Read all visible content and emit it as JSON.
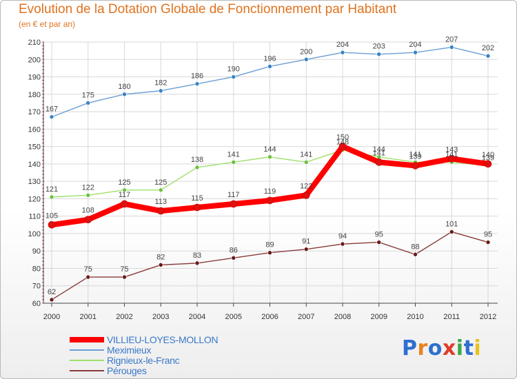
{
  "title": "Evolution de la Dotation Globale de Fonctionnement par Habitant",
  "subtitle": "(en € et par an)",
  "logo": {
    "text": "Proxiti",
    "colors": [
      "#2e6fd0",
      "#e8821e",
      "#2e6fd0",
      "#e03a2a",
      "#3aa84a",
      "#2e6fd0",
      "#e8c31e"
    ]
  },
  "chart_data": {
    "type": "line",
    "title": "Evolution de la Dotation Globale de Fonctionnement par Habitant",
    "subtitle": "(en € et par an)",
    "xlabel": "",
    "ylabel": "",
    "ylim": [
      60,
      210
    ],
    "yticks": [
      60,
      70,
      80,
      90,
      100,
      110,
      120,
      130,
      140,
      150,
      160,
      170,
      180,
      190,
      200,
      210
    ],
    "grid": true,
    "legend_position": "bottom-left",
    "categories": [
      "2000",
      "2001",
      "2002",
      "2003",
      "2004",
      "2005",
      "2006",
      "2007",
      "2008",
      "2009",
      "2010",
      "2011",
      "2012"
    ],
    "series": [
      {
        "name": "VILLIEU-LOYES-MOLLON",
        "color": "#ff0000",
        "marker": "#e01010",
        "width": 8,
        "values": [
          105,
          108,
          117,
          113,
          115,
          117,
          119,
          122,
          150,
          141,
          139,
          143,
          140
        ]
      },
      {
        "name": "Meximieux",
        "color": "#6a9fd4",
        "marker": "#3a82c4",
        "width": 1.4,
        "values": [
          167,
          175,
          180,
          182,
          186,
          190,
          196,
          200,
          204,
          203,
          204,
          207,
          202
        ]
      },
      {
        "name": "Rignieux-le-Franc",
        "color": "#9ee06a",
        "marker": "#6cc040",
        "width": 1.4,
        "values": [
          121,
          122,
          125,
          125,
          138,
          141,
          144,
          141,
          148,
          144,
          141,
          141,
          139
        ]
      },
      {
        "name": "Pérouges",
        "color": "#8a3a3a",
        "marker": "#6a1a1a",
        "width": 1.4,
        "values": [
          62,
          75,
          75,
          82,
          83,
          86,
          89,
          91,
          94,
          95,
          88,
          101,
          95
        ]
      }
    ]
  }
}
